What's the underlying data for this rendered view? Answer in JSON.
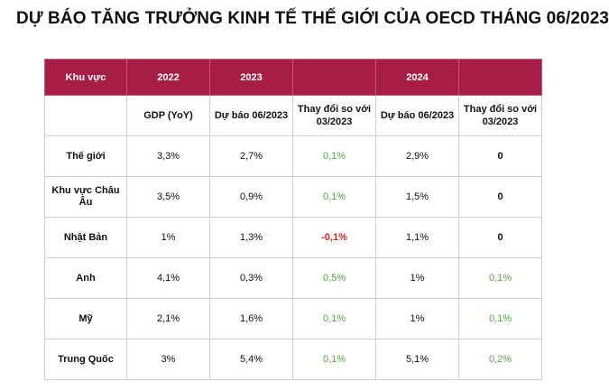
{
  "title": "DỰ BÁO TĂNG TRƯỞNG KINH TẾ THẾ GIỚI CỦA OECD THÁNG 06/2023",
  "colors": {
    "header_bg": "#a81d48",
    "positive": "#4bab3a",
    "negative": "#e02020"
  },
  "table": {
    "headers": [
      "Khu vực",
      "2022",
      "2023",
      "",
      "2024",
      ""
    ],
    "subheaders": [
      "",
      "GDP (YoY)",
      "Dự báo 06/2023",
      "Thay đổi so với 03/2023",
      "Dự báo 06/2023",
      "Thay đổi so với 03/2023"
    ],
    "rows": [
      {
        "region": "Thế giới",
        "gdp_2022": "3,3%",
        "f2023": "2,7%",
        "chg2023": "0,1%",
        "f2024": "2,9%",
        "chg2024": "0"
      },
      {
        "region": "Khu vực Châu Âu",
        "gdp_2022": "3,5%",
        "f2023": "0,9%",
        "chg2023": "0,1%",
        "f2024": "1,5%",
        "chg2024": "0"
      },
      {
        "region": "Nhật Bản",
        "gdp_2022": "1%",
        "f2023": "1,3%",
        "chg2023": "-0,1%",
        "f2024": "1,1%",
        "chg2024": "0"
      },
      {
        "region": "Anh",
        "gdp_2022": "4,1%",
        "f2023": "0,3%",
        "chg2023": "0,5%",
        "f2024": "1%",
        "chg2024": "0,1%"
      },
      {
        "region": "Mỹ",
        "gdp_2022": "2,1%",
        "f2023": "1,6%",
        "chg2023": "0,1%",
        "f2024": "1%",
        "chg2024": "0,1%"
      },
      {
        "region": "Trung Quốc",
        "gdp_2022": "3%",
        "f2023": "5,4%",
        "chg2023": "0,1%",
        "f2024": "5,1%",
        "chg2024": "0,2%"
      }
    ]
  }
}
